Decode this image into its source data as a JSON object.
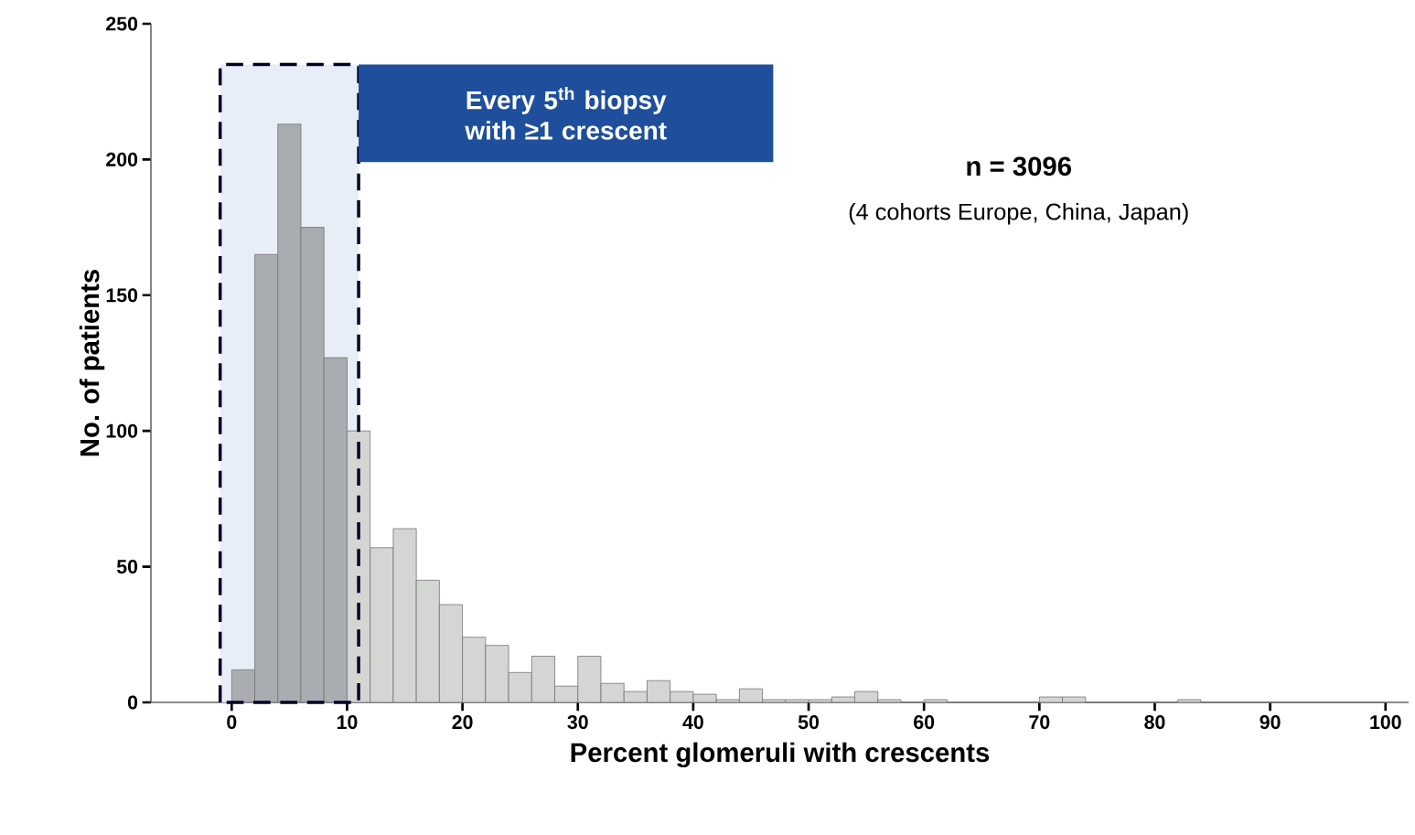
{
  "chart_data": {
    "type": "histogram",
    "xlabel": "Percent glomeruli with crescents",
    "ylabel": "No. of patients",
    "bins": [
      0,
      2,
      4,
      6,
      8,
      10,
      12,
      14,
      16,
      18,
      20,
      22,
      24,
      26,
      28,
      30,
      32,
      34,
      36,
      38,
      40,
      42,
      44,
      46,
      48,
      50,
      52,
      54,
      56,
      58,
      60,
      62,
      64,
      66,
      68,
      70,
      72,
      74,
      76,
      78,
      80,
      82,
      84,
      86,
      88,
      90,
      92,
      94,
      96,
      98,
      100
    ],
    "values": [
      12,
      165,
      213,
      175,
      127,
      100,
      57,
      64,
      45,
      36,
      24,
      21,
      11,
      17,
      6,
      17,
      7,
      4,
      8,
      4,
      3,
      1,
      5,
      1,
      1,
      1,
      2,
      4,
      1,
      0,
      1,
      0,
      0,
      0,
      0,
      2,
      2,
      0,
      0,
      0,
      0,
      1,
      0,
      0,
      0,
      0,
      0,
      0,
      0,
      0
    ],
    "colors": [
      "#a9adb2",
      "#a9adb2",
      "#a9adb2",
      "#a9adb2",
      "#a9adb2",
      "#d4d6d4",
      "#d4d6d4",
      "#d4d6d4",
      "#d4d6d4",
      "#d4d6d4",
      "#d4d6d4",
      "#d4d6d4",
      "#d4d6d4",
      "#d4d6d4",
      "#d4d6d4",
      "#d4d6d4",
      "#d4d6d4",
      "#d4d6d4",
      "#d4d6d4",
      "#d4d6d4",
      "#d4d6d4",
      "#d4d6d4",
      "#d4d6d4",
      "#d4d6d4",
      "#d4d6d4",
      "#d4d6d4",
      "#d4d6d4",
      "#d4d6d4",
      "#d4d6d4",
      "#d4d6d4",
      "#d4d6d4",
      "#d4d6d4",
      "#d4d6d4",
      "#d4d6d4",
      "#d4d6d4",
      "#d4d6d4",
      "#d4d6d4",
      "#d4d6d4",
      "#d4d6d4",
      "#d4d6d4",
      "#d4d6d4",
      "#d4d6d4",
      "#d4d6d4",
      "#d4d6d4",
      "#d4d6d4",
      "#d4d6d4",
      "#d4d6d4",
      "#d4d6d4",
      "#d4d6d4",
      "#d4d6d4"
    ],
    "xlim": [
      -7,
      102
    ],
    "ylim": [
      0,
      250
    ],
    "xticks": [
      0,
      10,
      20,
      30,
      40,
      50,
      60,
      70,
      80,
      90,
      100
    ],
    "yticks": [
      0,
      50,
      100,
      150,
      200,
      250
    ],
    "grid": false,
    "bands": [
      {
        "axis": "x",
        "from": -1,
        "to": 11,
        "label": "Every 5$^{th}$ biopsy with ≥1 crescent",
        "color": "#e8eef7"
      }
    ],
    "annotations": [
      "n = 3096",
      "(4 cohorts Europe, China, Japan)"
    ]
  }
}
